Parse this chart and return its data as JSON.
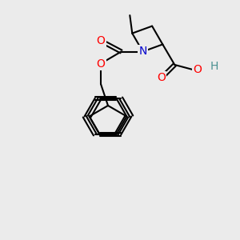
{
  "bg_color": "#ebebeb",
  "bond_color": "#000000",
  "bond_width": 1.5,
  "atom_colors": {
    "O": "#ff0000",
    "N": "#0000cc",
    "H": "#4a9090",
    "C": "#000000"
  },
  "font_size_atom": 10
}
